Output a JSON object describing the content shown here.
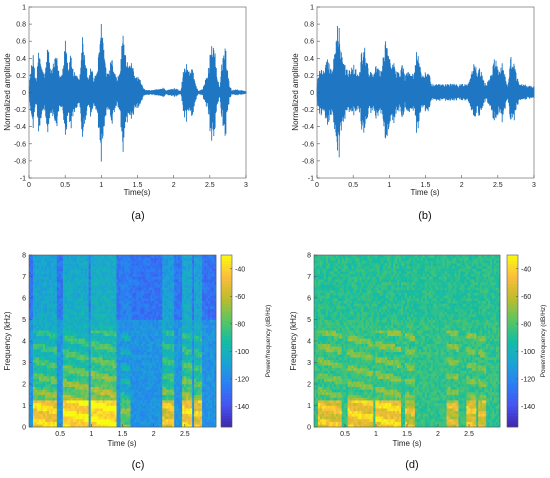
{
  "panels": [
    {
      "id": "a",
      "caption": "(a)",
      "type": "waveform",
      "xlabel": "Time(s)",
      "ylabel": "Normalized amplitude",
      "xlim": [
        0,
        3
      ],
      "ylim": [
        -1,
        1
      ],
      "xticks": [
        "0",
        "0.5",
        "1",
        "1.5",
        "2",
        "2.5",
        "3"
      ],
      "yticks": [
        "-1",
        "-0.8",
        "-0.6",
        "-0.4",
        "-0.2",
        "0",
        "0.2",
        "0.4",
        "0.6",
        "0.8",
        "1"
      ],
      "color": "#1f77c4",
      "envelope": [
        [
          0.0,
          0.02
        ],
        [
          0.02,
          0.25
        ],
        [
          0.06,
          0.45
        ],
        [
          0.1,
          0.15
        ],
        [
          0.14,
          0.55
        ],
        [
          0.18,
          0.3
        ],
        [
          0.22,
          0.2
        ],
        [
          0.26,
          0.6
        ],
        [
          0.3,
          0.25
        ],
        [
          0.34,
          0.35
        ],
        [
          0.38,
          0.45
        ],
        [
          0.42,
          0.2
        ],
        [
          0.46,
          0.25
        ],
        [
          0.5,
          0.7
        ],
        [
          0.54,
          0.35
        ],
        [
          0.58,
          0.45
        ],
        [
          0.62,
          0.25
        ],
        [
          0.66,
          0.2
        ],
        [
          0.7,
          0.15
        ],
        [
          0.74,
          0.7
        ],
        [
          0.78,
          0.35
        ],
        [
          0.82,
          0.2
        ],
        [
          0.86,
          0.35
        ],
        [
          0.9,
          0.15
        ],
        [
          0.94,
          0.3
        ],
        [
          0.98,
          0.55
        ],
        [
          1.0,
          0.95
        ],
        [
          1.03,
          0.6
        ],
        [
          1.06,
          0.3
        ],
        [
          1.1,
          0.2
        ],
        [
          1.14,
          0.45
        ],
        [
          1.18,
          0.25
        ],
        [
          1.22,
          0.15
        ],
        [
          1.26,
          0.3
        ],
        [
          1.3,
          0.75
        ],
        [
          1.34,
          0.4
        ],
        [
          1.38,
          0.3
        ],
        [
          1.42,
          0.35
        ],
        [
          1.46,
          0.25
        ],
        [
          1.5,
          0.2
        ],
        [
          1.54,
          0.15
        ],
        [
          1.58,
          0.05
        ],
        [
          1.62,
          0.03
        ],
        [
          1.7,
          0.03
        ],
        [
          1.78,
          0.04
        ],
        [
          1.86,
          0.06
        ],
        [
          1.9,
          0.03
        ],
        [
          1.95,
          0.04
        ],
        [
          2.0,
          0.05
        ],
        [
          2.05,
          0.05
        ],
        [
          2.1,
          0.02
        ],
        [
          2.14,
          0.3
        ],
        [
          2.18,
          0.35
        ],
        [
          2.22,
          0.25
        ],
        [
          2.26,
          0.35
        ],
        [
          2.3,
          0.1
        ],
        [
          2.34,
          0.02
        ],
        [
          2.4,
          0.05
        ],
        [
          2.46,
          0.2
        ],
        [
          2.52,
          0.55
        ],
        [
          2.56,
          0.6
        ],
        [
          2.6,
          0.2
        ],
        [
          2.64,
          0.05
        ],
        [
          2.68,
          0.5
        ],
        [
          2.72,
          0.55
        ],
        [
          2.76,
          0.15
        ],
        [
          2.8,
          0.03
        ],
        [
          2.86,
          0.04
        ],
        [
          2.92,
          0.03
        ],
        [
          3.0,
          0.02
        ]
      ]
    },
    {
      "id": "b",
      "caption": "(b)",
      "type": "waveform",
      "xlabel": "Time (s)",
      "ylabel": "Normalized amplitude",
      "xlim": [
        0,
        3
      ],
      "ylim": [
        -1,
        1
      ],
      "xticks": [
        "0",
        "0.5",
        "1",
        "1.5",
        "2",
        "2.5",
        "3"
      ],
      "yticks": [
        "-1",
        "-0.8",
        "-0.6",
        "-0.4",
        "-0.2",
        "0",
        "0.2",
        "0.4",
        "0.6",
        "0.8",
        "1"
      ],
      "color": "#1f77c4",
      "envelope": [
        [
          0.0,
          0.08
        ],
        [
          0.02,
          0.25
        ],
        [
          0.06,
          0.35
        ],
        [
          0.1,
          0.25
        ],
        [
          0.14,
          0.45
        ],
        [
          0.18,
          0.3
        ],
        [
          0.22,
          0.35
        ],
        [
          0.26,
          0.55
        ],
        [
          0.3,
          0.95
        ],
        [
          0.34,
          0.45
        ],
        [
          0.38,
          0.35
        ],
        [
          0.42,
          0.3
        ],
        [
          0.46,
          0.25
        ],
        [
          0.5,
          0.35
        ],
        [
          0.54,
          0.3
        ],
        [
          0.58,
          0.2
        ],
        [
          0.62,
          0.55
        ],
        [
          0.66,
          0.6
        ],
        [
          0.7,
          0.35
        ],
        [
          0.74,
          0.25
        ],
        [
          0.78,
          0.2
        ],
        [
          0.82,
          0.35
        ],
        [
          0.86,
          0.25
        ],
        [
          0.9,
          0.3
        ],
        [
          0.94,
          0.65
        ],
        [
          0.98,
          0.55
        ],
        [
          1.0,
          0.45
        ],
        [
          1.03,
          0.35
        ],
        [
          1.06,
          0.4
        ],
        [
          1.1,
          0.25
        ],
        [
          1.14,
          0.25
        ],
        [
          1.18,
          0.35
        ],
        [
          1.22,
          0.2
        ],
        [
          1.26,
          0.25
        ],
        [
          1.3,
          0.2
        ],
        [
          1.34,
          0.25
        ],
        [
          1.38,
          0.55
        ],
        [
          1.42,
          0.35
        ],
        [
          1.46,
          0.2
        ],
        [
          1.5,
          0.25
        ],
        [
          1.54,
          0.25
        ],
        [
          1.58,
          0.12
        ],
        [
          1.62,
          0.1
        ],
        [
          1.7,
          0.1
        ],
        [
          1.78,
          0.1
        ],
        [
          1.86,
          0.12
        ],
        [
          1.9,
          0.1
        ],
        [
          1.95,
          0.1
        ],
        [
          2.0,
          0.1
        ],
        [
          2.05,
          0.1
        ],
        [
          2.1,
          0.12
        ],
        [
          2.14,
          0.3
        ],
        [
          2.18,
          0.35
        ],
        [
          2.22,
          0.25
        ],
        [
          2.26,
          0.3
        ],
        [
          2.3,
          0.15
        ],
        [
          2.34,
          0.1
        ],
        [
          2.4,
          0.2
        ],
        [
          2.46,
          0.45
        ],
        [
          2.52,
          0.25
        ],
        [
          2.56,
          0.35
        ],
        [
          2.6,
          0.2
        ],
        [
          2.64,
          0.1
        ],
        [
          2.68,
          0.45
        ],
        [
          2.72,
          0.35
        ],
        [
          2.76,
          0.2
        ],
        [
          2.8,
          0.1
        ],
        [
          2.86,
          0.1
        ],
        [
          2.92,
          0.08
        ],
        [
          3.0,
          0.08
        ]
      ]
    },
    {
      "id": "c",
      "caption": "(c)",
      "type": "spectrogram",
      "xlabel": "Time (s)",
      "ylabel": "Frequency (kHz)",
      "colorbar_label": "Power/frequency (dB/Hz)",
      "xlim": [
        0,
        3
      ],
      "ylim": [
        0,
        8
      ],
      "xticks": [
        "0.5",
        "1",
        "1.5",
        "2",
        "2.5"
      ],
      "yticks": [
        "0",
        "1",
        "2",
        "3",
        "4",
        "5",
        "6",
        "7",
        "8"
      ],
      "cbar_ticks": [
        "-40",
        "-60",
        "-80",
        "-100",
        "-120",
        "-140"
      ],
      "cbar_range": [
        -155,
        -30
      ],
      "colormap": [
        "#3e26a8",
        "#4752f3",
        "#2b7ef4",
        "#1aa4d4",
        "#14bda3",
        "#5cc65f",
        "#bfbc2b",
        "#fdbd3c",
        "#f9fb0e"
      ],
      "background_level": 0.32,
      "high_band_level": 0.22,
      "speech_segments": [
        [
          0.05,
          0.45,
          0.8
        ],
        [
          0.55,
          0.95,
          0.85
        ],
        [
          1.0,
          1.4,
          0.88
        ],
        [
          1.48,
          1.62,
          0.55
        ],
        [
          2.13,
          2.32,
          0.75
        ],
        [
          2.45,
          2.62,
          0.82
        ],
        [
          2.66,
          2.78,
          0.78
        ]
      ]
    },
    {
      "id": "d",
      "caption": "(d)",
      "type": "spectrogram",
      "xlabel": "Time (s)",
      "ylabel": "Frequency (kHz)",
      "colorbar_label": "Power/frequency (dB/Hz)",
      "xlim": [
        0,
        3
      ],
      "ylim": [
        0,
        8
      ],
      "xticks": [
        "0.5",
        "1",
        "1.5",
        "2",
        "2.5"
      ],
      "yticks": [
        "0",
        "1",
        "2",
        "3",
        "4",
        "5",
        "6",
        "7",
        "8"
      ],
      "cbar_ticks": [
        "-40",
        "-60",
        "-80",
        "-100",
        "-120",
        "-140"
      ],
      "cbar_range": [
        -155,
        -30
      ],
      "colormap": [
        "#3e26a8",
        "#4752f3",
        "#2b7ef4",
        "#1aa4d4",
        "#14bda3",
        "#5cc65f",
        "#bfbc2b",
        "#fdbd3c",
        "#f9fb0e"
      ],
      "background_level": 0.55,
      "high_band_level": 0.53,
      "speech_segments": [
        [
          0.05,
          0.45,
          0.75
        ],
        [
          0.55,
          0.95,
          0.78
        ],
        [
          1.0,
          1.4,
          0.8
        ],
        [
          1.48,
          1.62,
          0.7
        ],
        [
          2.13,
          2.32,
          0.7
        ],
        [
          2.45,
          2.62,
          0.75
        ],
        [
          2.66,
          2.78,
          0.72
        ]
      ]
    }
  ]
}
